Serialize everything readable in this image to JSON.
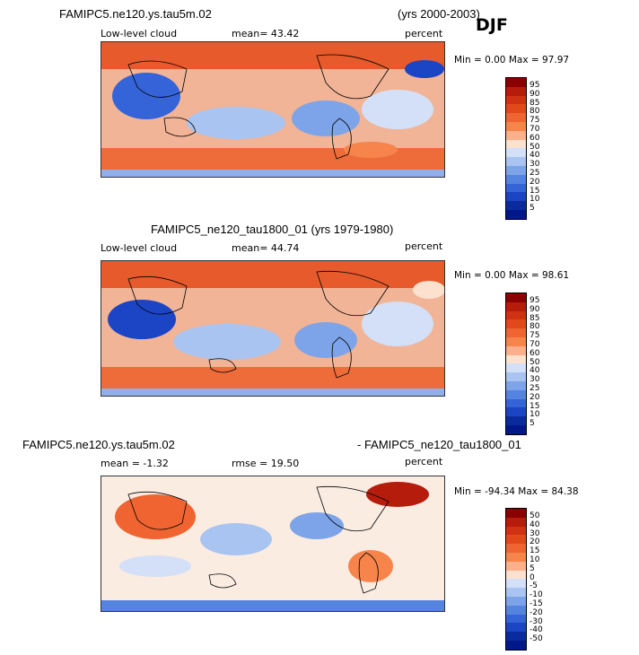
{
  "season": "DJF",
  "panels": [
    {
      "title_left": "FAMIPC5.ne120.ys.tau5m.02",
      "title_right": "(yrs 2000-2003)",
      "field": "Low-level cloud",
      "stat": "mean=   43.42",
      "units": "percent",
      "minmax": "Min =    0.00 Max =   97.97",
      "colorbar": {
        "ticks": [
          "95",
          "90",
          "85",
          "80",
          "75",
          "70",
          "60",
          "50",
          "40",
          "30",
          "25",
          "20",
          "15",
          "10",
          "5"
        ],
        "colors": [
          "#8b0000",
          "#b51c0b",
          "#cf3212",
          "#e1491b",
          "#ef6430",
          "#f7844a",
          "#fbb08b",
          "#fde1cf",
          "#d3e0f7",
          "#a9c4f0",
          "#7da4e8",
          "#5583e0",
          "#3563d8",
          "#1b45c4",
          "#0a2ba0",
          "#00188a"
        ]
      }
    },
    {
      "title": "FAMIPC5_ne120_tau1800_01 (yrs 1979-1980)",
      "field": "Low-level cloud",
      "stat": "mean=   44.74",
      "units": "percent",
      "minmax": "Min =    0.00 Max =   98.61",
      "colorbar": {
        "ticks": [
          "95",
          "90",
          "85",
          "80",
          "75",
          "70",
          "60",
          "50",
          "40",
          "30",
          "25",
          "20",
          "15",
          "10",
          "5"
        ],
        "colors": [
          "#8b0000",
          "#b51c0b",
          "#cf3212",
          "#e1491b",
          "#ef6430",
          "#f7844a",
          "#fbb08b",
          "#fde1cf",
          "#d3e0f7",
          "#a9c4f0",
          "#7da4e8",
          "#5583e0",
          "#3563d8",
          "#1b45c4",
          "#0a2ba0",
          "#00188a"
        ]
      }
    },
    {
      "title_left": "FAMIPC5.ne120.ys.tau5m.02",
      "title_right": "- FAMIPC5_ne120_tau1800_01",
      "stat": "mean =   -1.32",
      "stat2": "rmse =   19.50",
      "units": "percent",
      "minmax": "Min = -94.34 Max =  84.38",
      "colorbar": {
        "ticks": [
          "50",
          "40",
          "30",
          "20",
          "15",
          "10",
          "5",
          "0",
          "-5",
          "-10",
          "-15",
          "-20",
          "-30",
          "-40",
          "-50"
        ],
        "colors": [
          "#8b0000",
          "#b51c0b",
          "#cf3212",
          "#e1491b",
          "#ef6430",
          "#f7844a",
          "#fbb08b",
          "#fde1cf",
          "#d3e0f7",
          "#a9c4f0",
          "#7da4e8",
          "#5583e0",
          "#3563d8",
          "#1b45c4",
          "#0a2ba0",
          "#00188a"
        ]
      }
    }
  ]
}
